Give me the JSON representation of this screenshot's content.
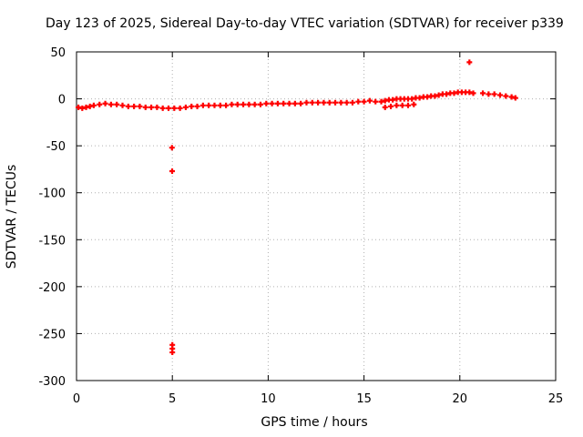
{
  "chart_data": {
    "type": "scatter",
    "title": "Day 123 of 2025, Sidereal Day-to-day VTEC variation (SDTVAR) for receiver p339",
    "xlabel": "GPS time / hours",
    "ylabel": "SDTVAR / TECUs",
    "xlim": [
      0,
      25
    ],
    "ylim": [
      -300,
      50
    ],
    "xticks": [
      0,
      5,
      10,
      15,
      20,
      25
    ],
    "yticks": [
      50,
      0,
      -50,
      -100,
      -150,
      -200,
      -250,
      -300
    ],
    "grid": true,
    "marker": "+",
    "color": "#ff0000",
    "series": [
      {
        "name": "SDTVAR",
        "x": [
          0.1,
          0.3,
          0.5,
          0.7,
          0.9,
          1.2,
          1.5,
          1.8,
          2.1,
          2.4,
          2.7,
          3.0,
          3.3,
          3.6,
          3.9,
          4.2,
          4.5,
          4.8,
          5.1,
          5.4,
          5.7,
          6.0,
          6.3,
          6.6,
          6.9,
          7.2,
          7.5,
          7.8,
          8.1,
          8.4,
          8.7,
          9.0,
          9.3,
          9.6,
          9.9,
          10.2,
          10.5,
          10.8,
          11.1,
          11.4,
          11.7,
          12.0,
          12.3,
          12.6,
          12.9,
          13.2,
          13.5,
          13.8,
          14.1,
          14.4,
          14.7,
          15.0,
          15.3,
          15.6,
          15.9,
          16.1,
          16.3,
          16.5,
          16.7,
          16.9,
          17.1,
          17.3,
          17.5,
          17.7,
          17.9,
          18.1,
          18.3,
          18.5,
          18.7,
          18.9,
          19.1,
          19.3,
          19.5,
          19.7,
          19.9,
          20.1,
          20.3,
          20.5,
          20.7,
          21.2,
          21.5,
          21.8,
          22.1,
          22.4,
          22.7,
          22.9,
          16.1,
          16.4,
          16.7,
          17.0,
          17.3,
          17.6,
          4.98,
          4.99,
          5.0,
          5.0,
          5.0,
          20.5
        ],
        "y": [
          -9,
          -10,
          -9,
          -8,
          -7,
          -6,
          -5,
          -6,
          -6,
          -7,
          -8,
          -8,
          -8,
          -9,
          -9,
          -9,
          -10,
          -10,
          -10,
          -10,
          -9,
          -8,
          -8,
          -7,
          -7,
          -7,
          -7,
          -7,
          -6,
          -6,
          -6,
          -6,
          -6,
          -6,
          -5,
          -5,
          -5,
          -5,
          -5,
          -5,
          -5,
          -4,
          -4,
          -4,
          -4,
          -4,
          -4,
          -4,
          -4,
          -4,
          -3,
          -3,
          -2,
          -3,
          -3,
          -2,
          -1,
          -1,
          0,
          0,
          0,
          0,
          0,
          1,
          1,
          2,
          2,
          3,
          3,
          4,
          5,
          5,
          6,
          6,
          7,
          7,
          7,
          7,
          6,
          6,
          5,
          5,
          4,
          3,
          2,
          1,
          -9,
          -8,
          -7,
          -7,
          -7,
          -6,
          -52,
          -77,
          -262,
          -266,
          -270,
          39
        ]
      }
    ]
  }
}
